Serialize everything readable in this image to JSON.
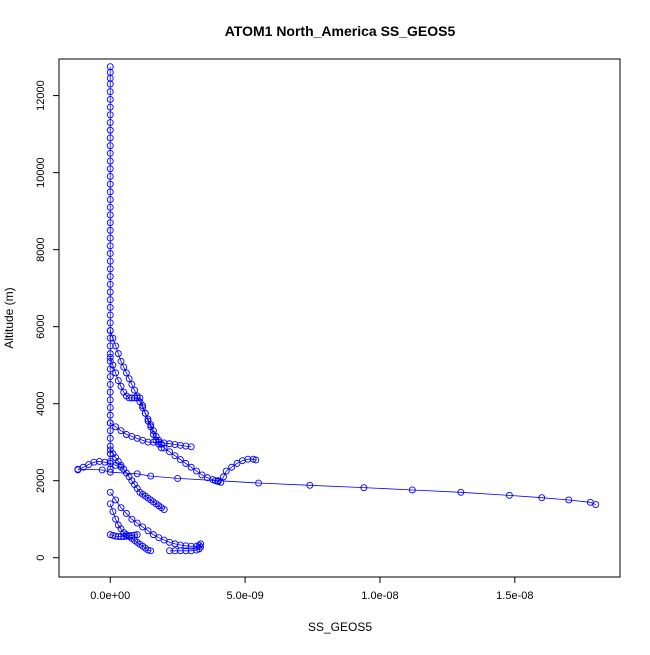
{
  "chart_data": {
    "type": "scatter",
    "title": "ATOM1 North_America SS_GEOS5",
    "xlabel": "SS_GEOS5",
    "ylabel": "Altitude (m)",
    "xlim": [
      -1.9e-09,
      1.89e-08
    ],
    "ylim": [
      -500,
      12950
    ],
    "x_ticks": [
      {
        "value": 0,
        "label": "0.0e+00"
      },
      {
        "value": 5e-09,
        "label": "5.0e-09"
      },
      {
        "value": 1e-08,
        "label": "1.0e-08"
      },
      {
        "value": 1.5e-08,
        "label": "1.5e-08"
      }
    ],
    "y_ticks": [
      {
        "value": 0,
        "label": "0"
      },
      {
        "value": 2000,
        "label": "2000"
      },
      {
        "value": 4000,
        "label": "4000"
      },
      {
        "value": 6000,
        "label": "6000"
      },
      {
        "value": 8000,
        "label": "8000"
      },
      {
        "value": 10000,
        "label": "10000"
      },
      {
        "value": 12000,
        "label": "12000"
      }
    ],
    "grid": false,
    "legend": "none",
    "point_style": "open-circle-with-connecting-line",
    "series_color": "#0000ff",
    "series": [
      {
        "x": [
          0,
          0,
          0,
          0,
          0,
          0,
          0,
          0,
          0,
          0,
          0,
          0,
          0,
          0,
          0,
          0,
          0,
          0,
          0,
          0,
          0,
          0,
          0,
          0,
          0,
          0,
          0,
          0,
          0,
          0,
          0,
          0,
          0,
          0,
          0,
          0,
          0,
          0,
          0,
          0,
          0,
          0,
          0,
          0,
          0,
          0,
          0,
          0,
          0,
          0,
          0,
          0,
          0,
          0
        ],
        "y": [
          12750,
          12600,
          12450,
          12300,
          12100,
          11900,
          11700,
          11500,
          11300,
          11100,
          10900,
          10700,
          10500,
          10300,
          10100,
          9900,
          9700,
          9500,
          9300,
          9100,
          8900,
          8700,
          8500,
          8300,
          8100,
          7900,
          7700,
          7500,
          7300,
          7100,
          6900,
          6700,
          6500,
          6300,
          6100,
          5900,
          5700,
          5500,
          5300,
          5100,
          4900,
          4700,
          4500,
          4300,
          4100,
          3900,
          3700,
          3500,
          3300,
          3100,
          2900,
          2700,
          2500,
          2300
        ]
      },
      {
        "x": [
          0,
          1e-10,
          2e-10,
          3e-10,
          4e-10,
          5e-10,
          6e-10,
          7e-10,
          8e-10,
          9e-10,
          1e-09,
          1.1e-09,
          1.2e-09,
          1.3e-09,
          1.4e-09,
          1.5e-09,
          1.6e-09,
          1.7e-09,
          1.8e-09,
          1.9e-09,
          2e-09,
          2.2e-09,
          2.4e-09,
          2.6e-09,
          2.8e-09,
          3e-09,
          3.2e-09,
          3.4e-09,
          3.6e-09,
          3.8e-09,
          3.9e-09,
          4e-09,
          4.1e-09,
          4.2e-09,
          4.3e-09,
          4.5e-09,
          4.7e-09,
          4.9e-09,
          5.1e-09,
          5.3e-09,
          5.4e-09
        ],
        "y": [
          5900,
          5700,
          5500,
          5300,
          5100,
          4950,
          4800,
          4650,
          4500,
          4350,
          4200,
          4050,
          3900,
          3750,
          3600,
          3450,
          3300,
          3150,
          3050,
          2950,
          2850,
          2750,
          2650,
          2550,
          2450,
          2350,
          2250,
          2150,
          2080,
          2030,
          2000,
          1980,
          1960,
          2100,
          2250,
          2350,
          2450,
          2520,
          2560,
          2560,
          2540
        ]
      },
      {
        "x": [
          1.8e-08,
          1.78e-08,
          1.7e-08,
          1.6e-08,
          1.48e-08,
          1.3e-08,
          1.12e-08,
          9.4e-09,
          7.4e-09,
          5.5e-09,
          4e-09,
          2.5e-09,
          1.5e-09,
          1e-09,
          0,
          -3e-10,
          -1.2e-09
        ],
        "y": [
          1380,
          1440,
          1500,
          1560,
          1620,
          1700,
          1760,
          1820,
          1880,
          1940,
          2000,
          2060,
          2120,
          2180,
          2220,
          2280,
          2300
        ]
      },
      {
        "x": [
          0,
          2e-10,
          4e-10,
          6e-10,
          8e-10,
          1e-09,
          1.2e-09,
          1.4e-09,
          1.6e-09,
          1.8e-09,
          2e-09,
          2.2e-09,
          2.4e-09,
          2.6e-09,
          2.8e-09,
          3e-09,
          3.2e-09,
          3.3e-09,
          3.35e-09,
          3.35e-09,
          3.3e-09,
          3.2e-09,
          3e-09,
          2.8e-09,
          2.6e-09,
          2.4e-09,
          2.2e-09
        ],
        "y": [
          1700,
          1500,
          1300,
          1150,
          1000,
          900,
          800,
          700,
          600,
          520,
          460,
          400,
          360,
          330,
          310,
          300,
          300,
          320,
          360,
          280,
          230,
          200,
          180,
          180,
          180,
          180,
          180
        ]
      },
      {
        "x": [
          0,
          1e-10,
          2e-10,
          3e-10,
          4e-10,
          5e-10,
          6e-10,
          7e-10,
          8e-10,
          9e-10,
          1e-09,
          1.1e-09,
          1.2e-09,
          1.3e-09,
          1.4e-09,
          1.5e-09
        ],
        "y": [
          1400,
          1200,
          1000,
          850,
          750,
          650,
          600,
          550,
          500,
          450,
          400,
          350,
          300,
          250,
          200,
          180
        ]
      },
      {
        "x": [
          0,
          1e-10,
          2e-10,
          3e-10,
          4e-10,
          5e-10,
          6e-10,
          7e-10,
          8e-10,
          9e-10,
          1e-09,
          1.1e-09,
          1.2e-09,
          1.3e-09,
          1.4e-09,
          1.5e-09,
          1.6e-09,
          1.7e-09,
          1.8e-09,
          1.9e-09
        ],
        "y": [
          5200,
          5000,
          4800,
          4600,
          4450,
          4300,
          4200,
          4150,
          4150,
          4150,
          4150,
          4150,
          3950,
          3750,
          3550,
          3400,
          3200,
          3050,
          2950,
          2850
        ]
      },
      {
        "x": [
          0,
          1e-10,
          2e-10,
          3e-10,
          4e-10,
          5e-10,
          6e-10,
          7e-10,
          8e-10,
          9e-10,
          1e-09,
          1.1e-09,
          1.2e-09,
          1.3e-09,
          1.4e-09,
          1.5e-09,
          1.6e-09,
          1.7e-09,
          1.8e-09,
          1.9e-09,
          2e-09
        ],
        "y": [
          2800,
          2700,
          2600,
          2500,
          2400,
          2300,
          2200,
          2100,
          2000,
          1900,
          1800,
          1700,
          1650,
          1600,
          1550,
          1500,
          1450,
          1400,
          1350,
          1300,
          1250
        ]
      },
      {
        "x": [
          0,
          2e-10,
          4e-10,
          6e-10,
          8e-10,
          1e-09,
          1.2e-09,
          1.4e-09,
          1.6e-09,
          1.8e-09,
          2e-09,
          2.2e-09,
          2.4e-09,
          2.6e-09,
          2.8e-09,
          3e-09
        ],
        "y": [
          3500,
          3400,
          3300,
          3200,
          3150,
          3100,
          3050,
          3000,
          3000,
          3000,
          2980,
          2960,
          2940,
          2920,
          2900,
          2880
        ]
      },
      {
        "x": [
          0,
          1e-10,
          2e-10,
          3e-10,
          4e-10,
          5e-10,
          6e-10,
          7e-10,
          8e-10,
          9e-10,
          1e-09
        ],
        "y": [
          600,
          580,
          560,
          550,
          550,
          550,
          560,
          570,
          580,
          590,
          600
        ]
      },
      {
        "x": [
          -1.2e-09,
          -1e-09,
          -8e-10,
          -6e-10,
          -4e-10,
          -2e-10,
          0,
          2e-10,
          4e-10
        ],
        "y": [
          2280,
          2350,
          2420,
          2480,
          2500,
          2480,
          2450,
          2400,
          2350
        ]
      }
    ]
  }
}
